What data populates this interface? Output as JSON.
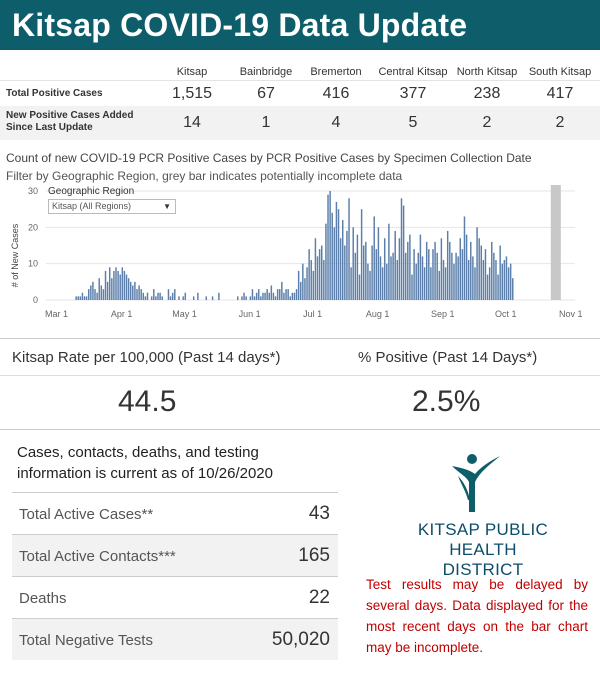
{
  "header": {
    "title": "Kitsap COVID-19 Data Update"
  },
  "summary": {
    "columns": [
      "Kitsap",
      "Bainbridge",
      "Bremerton",
      "Central Kitsap",
      "North Kitsap",
      "South Kitsap"
    ],
    "rows": [
      {
        "label": "Total Positive Cases",
        "values": [
          "1,515",
          "67",
          "416",
          "377",
          "238",
          "417"
        ]
      },
      {
        "label": "New Positive Cases Added Since Last Update",
        "label_line1": "New Positive Cases Added",
        "label_line2": "Since Last Update",
        "values": [
          "14",
          "1",
          "4",
          "5",
          "2",
          "2"
        ]
      }
    ]
  },
  "chart_text": {
    "title": "Count of new COVID-19 PCR Positive Cases by PCR Positive Cases by Specimen Collection Date",
    "subtitle": "Filter by Geographic Region, grey bar indicates potentially incomplete data",
    "filter_label": "Geographic Region",
    "filter_value": "Kitsap (All Regions)"
  },
  "chart_data": {
    "type": "bar",
    "title": "Count of new COVID-19 PCR Positive Cases by PCR Positive Cases by Specimen Collection Date",
    "xlabel": "",
    "ylabel": "# of New Cases",
    "ylim": [
      0,
      30
    ],
    "yticks": [
      0,
      10,
      20,
      30
    ],
    "xticks": [
      "Mar 1",
      "Apr 1",
      "May 1",
      "Jun 1",
      "Jul 1",
      "Aug 1",
      "Sep 1",
      "Oct 1",
      "Nov 1"
    ],
    "x_start": "2020-02-25",
    "bar_color": "#5b7faa",
    "incomplete_color": "#c8c8c8",
    "incomplete_from": "2020-10-22",
    "values": [
      0,
      0,
      0,
      0,
      0,
      0,
      0,
      0,
      0,
      0,
      0,
      0,
      0,
      0,
      1,
      1,
      1,
      2,
      1,
      1,
      3,
      4,
      5,
      3,
      2,
      6,
      4,
      3,
      8,
      5,
      9,
      6,
      8,
      9,
      8,
      7,
      9,
      8,
      7,
      6,
      5,
      4,
      5,
      3,
      4,
      3,
      2,
      1,
      2,
      0,
      1,
      3,
      1,
      2,
      2,
      1,
      0,
      0,
      3,
      1,
      2,
      3,
      0,
      1,
      0,
      1,
      2,
      0,
      0,
      0,
      1,
      0,
      2,
      0,
      0,
      0,
      1,
      0,
      0,
      1,
      0,
      0,
      2,
      0,
      0,
      0,
      0,
      0,
      0,
      0,
      0,
      1,
      0,
      1,
      2,
      1,
      0,
      1,
      3,
      1,
      2,
      3,
      1,
      2,
      2,
      3,
      2,
      4,
      2,
      1,
      3,
      3,
      5,
      2,
      3,
      3,
      1,
      2,
      2,
      3,
      8,
      5,
      10,
      6,
      9,
      14,
      11,
      8,
      17,
      12,
      14,
      15,
      11,
      21,
      29,
      30,
      24,
      20,
      27,
      25,
      17,
      22,
      15,
      19,
      28,
      9,
      20,
      13,
      18,
      7,
      25,
      15,
      16,
      10,
      8,
      15,
      23,
      14,
      20,
      12,
      9,
      17,
      10,
      21,
      12,
      13,
      19,
      11,
      17,
      28,
      26,
      13,
      16,
      18,
      7,
      14,
      10,
      13,
      18,
      12,
      9,
      16,
      14,
      9,
      14,
      16,
      13,
      8,
      17,
      11,
      9,
      19,
      16,
      13,
      10,
      13,
      12,
      17,
      14,
      23,
      18,
      11,
      16,
      12,
      9,
      20,
      17,
      15,
      11,
      14,
      7,
      9,
      16,
      13,
      11,
      7,
      15,
      10,
      11,
      12,
      9,
      10,
      6
    ]
  },
  "rates": {
    "rate_label": "Kitsap Rate per 100,000 (Past 14 days*)",
    "rate_value": "44.5",
    "positive_label": "% Positive (Past 14 Days*)",
    "positive_value": "2.5%"
  },
  "info": {
    "note_line1": "Cases, contacts, deaths, and testing",
    "note_line2": "information is current as of 10/26/2020",
    "stats": [
      {
        "label": "Total Active Cases**",
        "value": "43"
      },
      {
        "label": "Total Active Contacts***",
        "value": "165"
      },
      {
        "label": "Deaths",
        "value": "22"
      },
      {
        "label": "Total Negative Tests",
        "value": "50,020"
      }
    ]
  },
  "brand": {
    "line1": "KITSAP PUBLIC",
    "line2": "HEALTH DISTRICT",
    "color": "#0d4d6b"
  },
  "disclaimer": "Test results may be delayed by several days. Data displayed for the most recent days on the bar chart may be incomplete."
}
